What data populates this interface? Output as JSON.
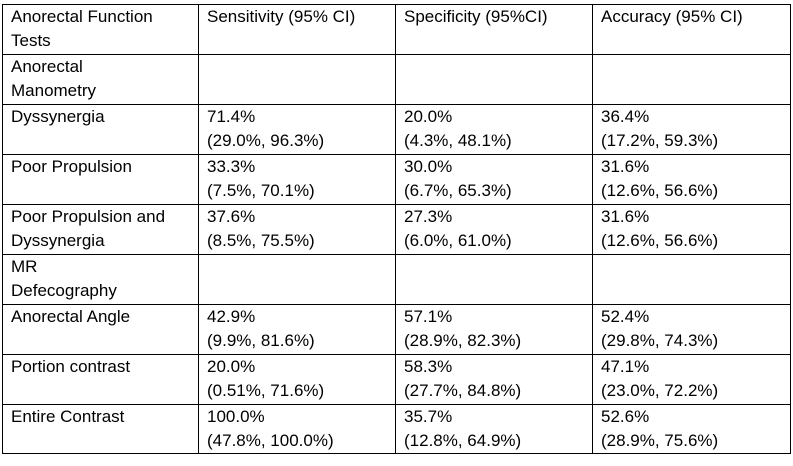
{
  "table": {
    "headers": [
      [
        "Anorectal Function",
        "Tests"
      ],
      [
        "Sensitivity (95% CI)"
      ],
      [
        "Specificity (95%CI)"
      ],
      [
        "Accuracy (95% CI)"
      ]
    ],
    "rows": [
      {
        "kind": "section",
        "label": [
          "Anorectal",
          "Manometry"
        ]
      },
      {
        "kind": "data",
        "label": [
          "Dyssynergia"
        ],
        "sensitivity": [
          "71.4%",
          "(29.0%, 96.3%)"
        ],
        "specificity": [
          "20.0%",
          "(4.3%, 48.1%)"
        ],
        "accuracy": [
          "36.4%",
          "(17.2%, 59.3%)"
        ]
      },
      {
        "kind": "data",
        "label": [
          "Poor Propulsion"
        ],
        "sensitivity": [
          "33.3%",
          "(7.5%, 70.1%)"
        ],
        "specificity": [
          "30.0%",
          "(6.7%, 65.3%)"
        ],
        "accuracy": [
          "31.6%",
          "(12.6%, 56.6%)"
        ]
      },
      {
        "kind": "data",
        "label": [
          "Poor Propulsion and",
          "Dyssynergia"
        ],
        "sensitivity": [
          "37.6%",
          "(8.5%, 75.5%)"
        ],
        "specificity": [
          "27.3%",
          "(6.0%, 61.0%)"
        ],
        "accuracy": [
          "31.6%",
          "(12.6%, 56.6%)"
        ]
      },
      {
        "kind": "section",
        "label": [
          "MR",
          "Defecography"
        ]
      },
      {
        "kind": "data",
        "label": [
          "Anorectal Angle"
        ],
        "sensitivity": [
          "42.9%",
          "(9.9%, 81.6%)"
        ],
        "specificity": [
          "57.1%",
          "(28.9%, 82.3%)"
        ],
        "accuracy": [
          "52.4%",
          "(29.8%, 74.3%)"
        ]
      },
      {
        "kind": "data",
        "label": [
          "Portion contrast"
        ],
        "sensitivity": [
          "20.0%",
          "(0.51%, 71.6%)"
        ],
        "specificity": [
          "58.3%",
          "(27.7%, 84.8%)"
        ],
        "accuracy": [
          "47.1%",
          "(23.0%, 72.2%)"
        ]
      },
      {
        "kind": "data",
        "label": [
          "Entire Contrast"
        ],
        "sensitivity": [
          "100.0%",
          "(47.8%, 100.0%)"
        ],
        "specificity": [
          "35.7%",
          "(12.8%, 64.9%)"
        ],
        "accuracy": [
          "52.6%",
          "(28.9%, 75.6%)"
        ]
      }
    ]
  }
}
